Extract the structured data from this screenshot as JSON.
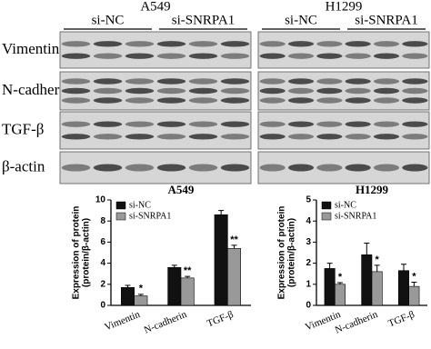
{
  "blot": {
    "panels": [
      {
        "title": "A549",
        "groups": [
          "si-NC",
          "si-SNRPA1"
        ]
      },
      {
        "title": "H1299",
        "groups": [
          "si-NC",
          "si-SNRPA1"
        ]
      }
    ],
    "proteins": [
      "Vimentin",
      "N-cadherin",
      "TGF-β",
      "β-actin"
    ]
  },
  "chart_data": [
    {
      "type": "bar",
      "title": "A549",
      "ylabel": [
        "Expression of protein",
        "(protein/β-actin)"
      ],
      "categories": [
        "Vimentin",
        "N-cadherin",
        "TGF-β"
      ],
      "series": [
        {
          "name": "si-NC",
          "color": "#111111",
          "values": [
            1.7,
            3.6,
            8.6
          ],
          "errors": [
            0.2,
            0.2,
            0.4
          ]
        },
        {
          "name": "si-SNRPA1",
          "color": "#999999",
          "values": [
            0.9,
            2.6,
            5.4
          ],
          "errors": [
            0.15,
            0.15,
            0.3
          ],
          "significance": [
            "*",
            "**",
            "**"
          ]
        }
      ],
      "ylim": [
        0,
        10
      ],
      "yticks": [
        0,
        2,
        4,
        6,
        8,
        10
      ],
      "legend": "upper left"
    },
    {
      "type": "bar",
      "title": "H1299",
      "ylabel": [
        "Expression of protein",
        "(protein/β-actin)"
      ],
      "categories": [
        "Vimentin",
        "N-cadherin",
        "TGF-β"
      ],
      "series": [
        {
          "name": "si-NC",
          "color": "#111111",
          "values": [
            1.75,
            2.4,
            1.65
          ],
          "errors": [
            0.25,
            0.55,
            0.3
          ]
        },
        {
          "name": "si-SNRPA1",
          "color": "#999999",
          "values": [
            1.0,
            1.6,
            0.9
          ],
          "errors": [
            0.08,
            0.3,
            0.2
          ],
          "significance": [
            "*",
            "*",
            "*"
          ]
        }
      ],
      "ylim": [
        0,
        5
      ],
      "yticks": [
        0,
        1,
        2,
        3,
        4,
        5
      ],
      "legend": "upper left"
    }
  ]
}
